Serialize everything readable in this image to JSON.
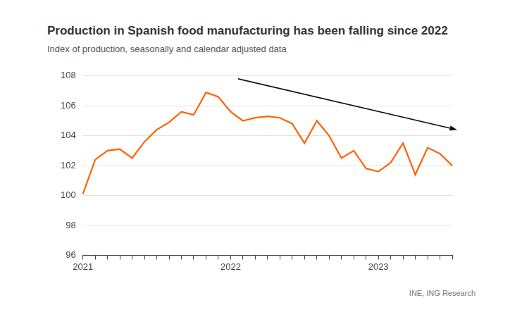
{
  "chart_data": {
    "type": "line",
    "title": "Production in Spanish food manufacturing has been falling since 2022",
    "subtitle": "Index of production, seasonally and calendar adjusted data",
    "source": "INE, ING Research",
    "categories": [
      "2021",
      null,
      null,
      null,
      null,
      null,
      null,
      null,
      null,
      null,
      null,
      null,
      "2022",
      null,
      null,
      null,
      null,
      null,
      null,
      null,
      null,
      null,
      null,
      null,
      "2023",
      null,
      null,
      null,
      null,
      null,
      null
    ],
    "values": [
      100.1,
      102.4,
      103.0,
      103.1,
      102.5,
      103.6,
      104.4,
      104.9,
      105.6,
      105.4,
      106.9,
      106.6,
      105.6,
      105.0,
      105.2,
      105.3,
      105.2,
      104.8,
      103.5,
      105.0,
      104.0,
      102.5,
      103.0,
      101.8,
      101.6,
      102.2,
      103.5,
      101.4,
      103.2,
      102.8,
      102.0
    ],
    "color": "#ff6200",
    "ylim": [
      96,
      108
    ],
    "yticks": [
      96,
      98,
      100,
      102,
      104,
      106,
      108
    ],
    "grid": true
  }
}
